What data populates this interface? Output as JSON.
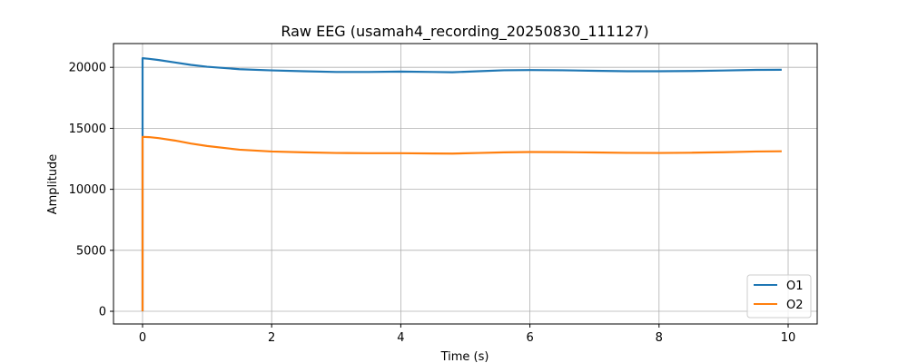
{
  "chart_data": {
    "type": "line",
    "title": "Raw EEG (usamah4_recording_20250830_111127)",
    "xlabel": "Time (s)",
    "ylabel": "Amplitude",
    "xlim": [
      -0.45,
      10.45
    ],
    "ylim": [
      -1040,
      21950
    ],
    "x_ticks": [
      0,
      2,
      4,
      6,
      8,
      10
    ],
    "y_ticks": [
      0,
      5000,
      10000,
      15000,
      20000
    ],
    "grid": true,
    "legend_position": "lower-right",
    "series": [
      {
        "name": "O1",
        "color": "#1f77b4",
        "points": [
          [
            0.0,
            0
          ],
          [
            0.0,
            20750
          ],
          [
            0.1,
            20700
          ],
          [
            0.25,
            20600
          ],
          [
            0.5,
            20400
          ],
          [
            0.75,
            20200
          ],
          [
            1.0,
            20050
          ],
          [
            1.5,
            19850
          ],
          [
            2.0,
            19750
          ],
          [
            2.5,
            19680
          ],
          [
            3.0,
            19620
          ],
          [
            3.5,
            19620
          ],
          [
            4.0,
            19650
          ],
          [
            4.5,
            19620
          ],
          [
            4.8,
            19600
          ],
          [
            5.2,
            19680
          ],
          [
            5.6,
            19760
          ],
          [
            6.0,
            19780
          ],
          [
            6.5,
            19760
          ],
          [
            7.0,
            19720
          ],
          [
            7.5,
            19680
          ],
          [
            8.0,
            19680
          ],
          [
            8.5,
            19700
          ],
          [
            9.0,
            19740
          ],
          [
            9.5,
            19790
          ],
          [
            9.9,
            19800
          ]
        ]
      },
      {
        "name": "O2",
        "color": "#ff7f0e",
        "points": [
          [
            0.0,
            0
          ],
          [
            0.0,
            14300
          ],
          [
            0.1,
            14280
          ],
          [
            0.25,
            14200
          ],
          [
            0.5,
            14000
          ],
          [
            0.75,
            13750
          ],
          [
            1.0,
            13550
          ],
          [
            1.5,
            13250
          ],
          [
            2.0,
            13100
          ],
          [
            2.5,
            13030
          ],
          [
            3.0,
            12980
          ],
          [
            3.5,
            12960
          ],
          [
            4.0,
            12960
          ],
          [
            4.5,
            12940
          ],
          [
            4.8,
            12930
          ],
          [
            5.2,
            12980
          ],
          [
            5.6,
            13030
          ],
          [
            6.0,
            13060
          ],
          [
            6.5,
            13050
          ],
          [
            7.0,
            13020
          ],
          [
            7.5,
            12990
          ],
          [
            8.0,
            12980
          ],
          [
            8.5,
            13000
          ],
          [
            9.0,
            13040
          ],
          [
            9.5,
            13100
          ],
          [
            9.9,
            13120
          ]
        ]
      }
    ]
  }
}
